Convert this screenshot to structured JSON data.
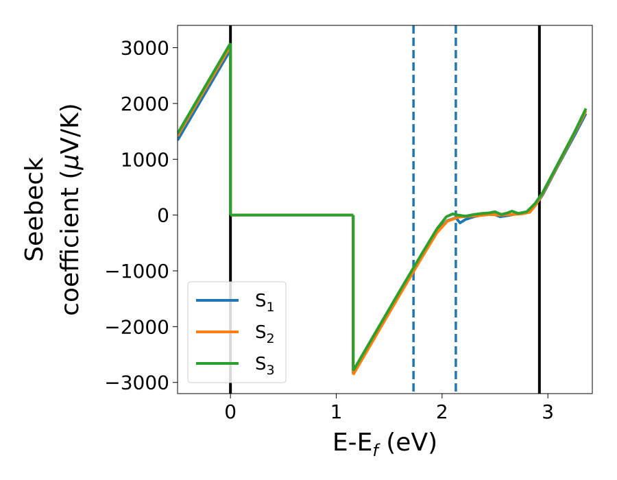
{
  "chart_data": {
    "type": "line",
    "xlabel": {
      "main": "E-E",
      "sub": "f",
      "unit": " (eV)"
    },
    "ylabel": {
      "line1": "Seebeck",
      "line2_prefix": "coefficient  (",
      "mu": "μ",
      "line2_suffix": "V/K)"
    },
    "xlim": [
      -0.5,
      3.42
    ],
    "ylim": [
      -3200,
      3400
    ],
    "xticks": [
      0,
      1,
      2,
      3
    ],
    "xtick_labels": [
      "0",
      "1",
      "2",
      "3"
    ],
    "yticks": [
      -3000,
      -2000,
      -1000,
      0,
      1000,
      2000,
      3000
    ],
    "ytick_labels": [
      "−3000",
      "−2000",
      "−1000",
      "0",
      "1000",
      "2000",
      "3000"
    ],
    "grid": false,
    "legend_position": "lower-left",
    "vlines": [
      {
        "x": 0.0,
        "style": "solid",
        "color": "#000000"
      },
      {
        "x": 2.92,
        "style": "solid",
        "color": "#000000"
      },
      {
        "x": 1.73,
        "style": "dashed",
        "color": "#1f77b4"
      },
      {
        "x": 2.13,
        "style": "dashed",
        "color": "#1f77b4"
      }
    ],
    "series": [
      {
        "name": "S",
        "sub": "1",
        "color": "#1f77b4",
        "segments": [
          [
            [
              -0.5,
              1340
            ],
            [
              0.0,
              2960
            ]
          ],
          [
            [
              0.0,
              0
            ],
            [
              1.16,
              0
            ]
          ],
          [
            [
              1.16,
              -2830
            ],
            [
              1.4,
              -2050
            ],
            [
              1.6,
              -1400
            ],
            [
              1.8,
              -760
            ],
            [
              1.95,
              -300
            ],
            [
              2.05,
              -100
            ],
            [
              2.13,
              -50
            ],
            [
              2.17,
              -140
            ],
            [
              2.22,
              -80
            ],
            [
              2.3,
              -30
            ],
            [
              2.4,
              10
            ],
            [
              2.48,
              20
            ],
            [
              2.55,
              -30
            ],
            [
              2.62,
              -10
            ],
            [
              2.7,
              20
            ],
            [
              2.8,
              40
            ],
            [
              2.88,
              170
            ],
            [
              2.95,
              360
            ],
            [
              3.1,
              900
            ],
            [
              3.25,
              1420
            ],
            [
              3.36,
              1820
            ]
          ]
        ]
      },
      {
        "name": "S",
        "sub": "2",
        "color": "#ff7f0e",
        "segments": [
          [
            [
              -0.5,
              1420
            ],
            [
              0.0,
              3030
            ]
          ],
          [
            [
              0.0,
              0
            ],
            [
              1.16,
              0
            ]
          ],
          [
            [
              1.16,
              -2860
            ],
            [
              1.4,
              -2080
            ],
            [
              1.6,
              -1430
            ],
            [
              1.8,
              -790
            ],
            [
              1.95,
              -320
            ],
            [
              2.05,
              -110
            ],
            [
              2.15,
              -40
            ],
            [
              2.25,
              -20
            ],
            [
              2.35,
              -10
            ],
            [
              2.45,
              10
            ],
            [
              2.55,
              0
            ],
            [
              2.65,
              10
            ],
            [
              2.75,
              20
            ],
            [
              2.83,
              50
            ],
            [
              2.88,
              170
            ],
            [
              2.95,
              380
            ],
            [
              3.1,
              920
            ],
            [
              3.25,
              1460
            ],
            [
              3.36,
              1870
            ]
          ]
        ]
      },
      {
        "name": "S",
        "sub": "3",
        "color": "#2ca02c",
        "segments": [
          [
            [
              -0.5,
              1460
            ],
            [
              0.0,
              3080
            ]
          ],
          [
            [
              0.0,
              0
            ],
            [
              1.16,
              0
            ]
          ],
          [
            [
              1.16,
              -2790
            ],
            [
              1.4,
              -2010
            ],
            [
              1.6,
              -1360
            ],
            [
              1.8,
              -720
            ],
            [
              1.95,
              -250
            ],
            [
              2.04,
              -30
            ],
            [
              2.1,
              20
            ],
            [
              2.15,
              0
            ],
            [
              2.22,
              -20
            ],
            [
              2.3,
              10
            ],
            [
              2.38,
              30
            ],
            [
              2.45,
              40
            ],
            [
              2.5,
              60
            ],
            [
              2.56,
              10
            ],
            [
              2.62,
              40
            ],
            [
              2.66,
              70
            ],
            [
              2.72,
              30
            ],
            [
              2.8,
              60
            ],
            [
              2.88,
              210
            ],
            [
              2.95,
              400
            ],
            [
              3.1,
              940
            ],
            [
              3.25,
              1480
            ],
            [
              3.36,
              1910
            ]
          ]
        ]
      }
    ]
  }
}
